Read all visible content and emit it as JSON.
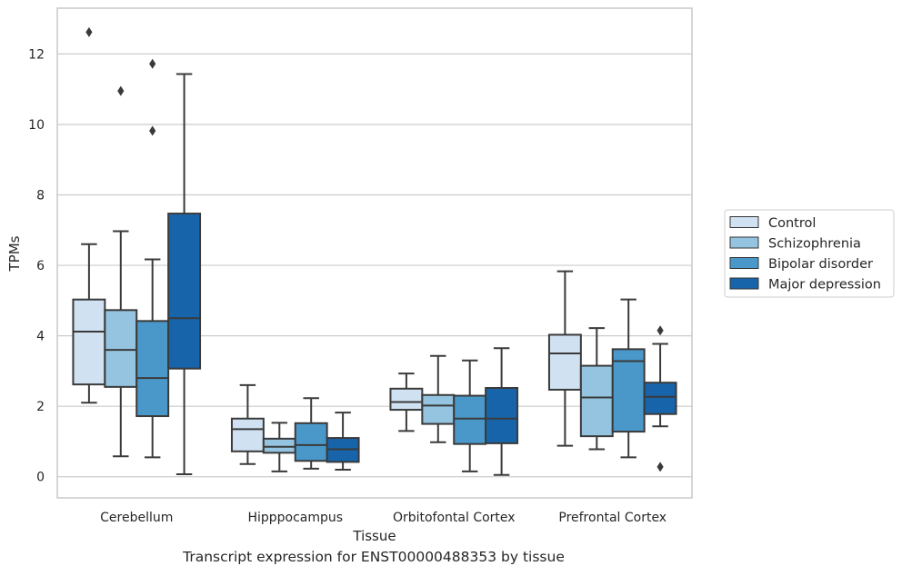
{
  "caption": "Transcript expression for ENST00000488353 by tissue",
  "chart_data": {
    "type": "box",
    "xlabel": "Tissue",
    "ylabel": "TPMs",
    "ylim": [
      -0.6,
      13.3
    ],
    "yticks": [
      0,
      2,
      4,
      6,
      8,
      10,
      12
    ],
    "grid": "horizontal",
    "legend_position": "right",
    "categories": [
      "Cerebellum",
      "Hipppocampus",
      "Orbitofontal Cortex",
      "Prefrontal Cortex"
    ],
    "series": [
      {
        "name": "Control",
        "color": "#d0e1f2",
        "boxes": [
          {
            "q1": 2.62,
            "median": 4.12,
            "q3": 5.03,
            "whisker_low": 2.1,
            "whisker_high": 6.6,
            "outliers": [
              12.62
            ]
          },
          {
            "q1": 0.72,
            "median": 1.35,
            "q3": 1.65,
            "whisker_low": 0.36,
            "whisker_high": 2.6,
            "outliers": []
          },
          {
            "q1": 1.9,
            "median": 2.12,
            "q3": 2.5,
            "whisker_low": 1.3,
            "whisker_high": 2.93,
            "outliers": []
          },
          {
            "q1": 2.47,
            "median": 3.5,
            "q3": 4.03,
            "whisker_low": 0.88,
            "whisker_high": 5.83,
            "outliers": []
          }
        ]
      },
      {
        "name": "Schizophrenia",
        "color": "#94c4df",
        "boxes": [
          {
            "q1": 2.55,
            "median": 3.6,
            "q3": 4.73,
            "whisker_low": 0.58,
            "whisker_high": 6.97,
            "outliers": [
              10.95
            ]
          },
          {
            "q1": 0.68,
            "median": 0.85,
            "q3": 1.08,
            "whisker_low": 0.15,
            "whisker_high": 1.53,
            "outliers": []
          },
          {
            "q1": 1.5,
            "median": 2.02,
            "q3": 2.32,
            "whisker_low": 0.98,
            "whisker_high": 3.43,
            "outliers": []
          },
          {
            "q1": 1.15,
            "median": 2.25,
            "q3": 3.15,
            "whisker_low": 0.78,
            "whisker_high": 4.22,
            "outliers": []
          }
        ]
      },
      {
        "name": "Bipolar disorder",
        "color": "#4a98c9",
        "boxes": [
          {
            "q1": 1.72,
            "median": 2.8,
            "q3": 4.42,
            "whisker_low": 0.55,
            "whisker_high": 6.17,
            "outliers": [
              11.72,
              9.82
            ]
          },
          {
            "q1": 0.45,
            "median": 0.9,
            "q3": 1.52,
            "whisker_low": 0.23,
            "whisker_high": 2.23,
            "outliers": []
          },
          {
            "q1": 0.93,
            "median": 1.65,
            "q3": 2.3,
            "whisker_low": 0.15,
            "whisker_high": 3.3,
            "outliers": []
          },
          {
            "q1": 1.28,
            "median": 3.28,
            "q3": 3.62,
            "whisker_low": 0.55,
            "whisker_high": 5.03,
            "outliers": []
          }
        ]
      },
      {
        "name": "Major depression",
        "color": "#1764ab",
        "boxes": [
          {
            "q1": 3.07,
            "median": 4.5,
            "q3": 7.47,
            "whisker_low": 0.07,
            "whisker_high": 11.43,
            "outliers": []
          },
          {
            "q1": 0.42,
            "median": 0.78,
            "q3": 1.1,
            "whisker_low": 0.2,
            "whisker_high": 1.82,
            "outliers": []
          },
          {
            "q1": 0.95,
            "median": 1.65,
            "q3": 2.52,
            "whisker_low": 0.05,
            "whisker_high": 3.65,
            "outliers": []
          },
          {
            "q1": 1.78,
            "median": 2.27,
            "q3": 2.67,
            "whisker_low": 1.43,
            "whisker_high": 3.77,
            "outliers": [
              4.15,
              0.28
            ]
          }
        ]
      }
    ]
  }
}
